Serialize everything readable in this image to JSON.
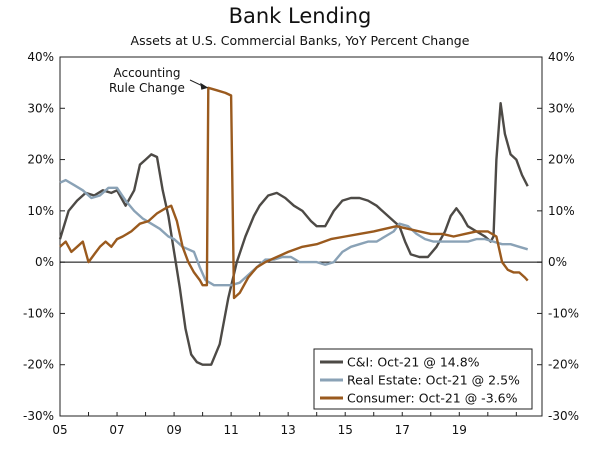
{
  "title": "Bank Lending",
  "subtitle": "Assets at U.S. Commercial Banks, YoY Percent Change",
  "chart_data": {
    "type": "line",
    "title": "Bank Lending",
    "subtitle": "Assets at U.S. Commercial Banks, YoY Percent Change",
    "xlim": [
      2005.0,
      2021.9
    ],
    "ylim": [
      -30,
      40
    ],
    "y_ticks": [
      -30,
      -20,
      -10,
      0,
      10,
      20,
      30,
      40
    ],
    "y_tick_labels": [
      "-30%",
      "-20%",
      "-10%",
      "0%",
      "10%",
      "20%",
      "30%",
      "40%"
    ],
    "x_ticks": [
      2005,
      2007,
      2009,
      2011,
      2013,
      2015,
      2017,
      2019
    ],
    "x_tick_labels": [
      "05",
      "07",
      "09",
      "11",
      "13",
      "15",
      "17",
      "19"
    ],
    "grid": false,
    "legend_position": "bottom-right",
    "annotation": {
      "lines": [
        "Accounting",
        "Rule Change"
      ],
      "x": 2010.2,
      "y": 34
    },
    "series": [
      {
        "name": "C&I: Oct-21 @ 14.8%",
        "color": "#4d4a46",
        "points": [
          [
            2005.0,
            4.5
          ],
          [
            2005.3,
            10
          ],
          [
            2005.6,
            12
          ],
          [
            2005.9,
            13.5
          ],
          [
            2006.2,
            13
          ],
          [
            2006.5,
            14
          ],
          [
            2006.8,
            13.5
          ],
          [
            2007.0,
            14
          ],
          [
            2007.3,
            11
          ],
          [
            2007.6,
            14
          ],
          [
            2007.8,
            19
          ],
          [
            2008.0,
            20
          ],
          [
            2008.2,
            21
          ],
          [
            2008.4,
            20.5
          ],
          [
            2008.6,
            14
          ],
          [
            2008.8,
            9
          ],
          [
            2009.0,
            2
          ],
          [
            2009.2,
            -5
          ],
          [
            2009.4,
            -13
          ],
          [
            2009.6,
            -18
          ],
          [
            2009.8,
            -19.5
          ],
          [
            2010.0,
            -20
          ],
          [
            2010.3,
            -20
          ],
          [
            2010.6,
            -16
          ],
          [
            2010.9,
            -7
          ],
          [
            2011.2,
            0
          ],
          [
            2011.5,
            5
          ],
          [
            2011.8,
            9
          ],
          [
            2012.0,
            11
          ],
          [
            2012.3,
            13
          ],
          [
            2012.6,
            13.5
          ],
          [
            2012.9,
            12.5
          ],
          [
            2013.2,
            11
          ],
          [
            2013.5,
            10
          ],
          [
            2013.8,
            8
          ],
          [
            2014.0,
            7
          ],
          [
            2014.3,
            7
          ],
          [
            2014.6,
            10
          ],
          [
            2014.9,
            12
          ],
          [
            2015.2,
            12.5
          ],
          [
            2015.5,
            12.5
          ],
          [
            2015.8,
            12
          ],
          [
            2016.1,
            11
          ],
          [
            2016.4,
            9.5
          ],
          [
            2016.7,
            8
          ],
          [
            2016.9,
            7
          ],
          [
            2017.1,
            4
          ],
          [
            2017.3,
            1.5
          ],
          [
            2017.6,
            1
          ],
          [
            2017.9,
            1
          ],
          [
            2018.2,
            3
          ],
          [
            2018.5,
            6
          ],
          [
            2018.7,
            9
          ],
          [
            2018.9,
            10.5
          ],
          [
            2019.1,
            9
          ],
          [
            2019.3,
            7
          ],
          [
            2019.6,
            6
          ],
          [
            2019.9,
            5
          ],
          [
            2020.1,
            4
          ],
          [
            2020.2,
            5
          ],
          [
            2020.3,
            20
          ],
          [
            2020.45,
            31
          ],
          [
            2020.6,
            25
          ],
          [
            2020.8,
            21
          ],
          [
            2021.0,
            20
          ],
          [
            2021.2,
            17
          ],
          [
            2021.4,
            14.8
          ]
        ]
      },
      {
        "name": "Real Estate: Oct-21 @ 2.5%",
        "color": "#8aa2b6",
        "points": [
          [
            2005.0,
            15.5
          ],
          [
            2005.2,
            16
          ],
          [
            2005.5,
            15
          ],
          [
            2005.8,
            14
          ],
          [
            2006.1,
            12.5
          ],
          [
            2006.4,
            13
          ],
          [
            2006.7,
            14.5
          ],
          [
            2007.0,
            14.5
          ],
          [
            2007.3,
            12
          ],
          [
            2007.6,
            10
          ],
          [
            2007.9,
            8.5
          ],
          [
            2008.2,
            7.5
          ],
          [
            2008.5,
            6.5
          ],
          [
            2008.8,
            5
          ],
          [
            2009.0,
            4.5
          ],
          [
            2009.3,
            3
          ],
          [
            2009.5,
            2.5
          ],
          [
            2009.7,
            2
          ],
          [
            2009.9,
            -1
          ],
          [
            2010.1,
            -3.5
          ],
          [
            2010.4,
            -4.5
          ],
          [
            2010.7,
            -4.5
          ],
          [
            2011.0,
            -4.5
          ],
          [
            2011.3,
            -4
          ],
          [
            2011.6,
            -2.5
          ],
          [
            2011.9,
            -1
          ],
          [
            2012.2,
            0.5
          ],
          [
            2012.5,
            0.5
          ],
          [
            2012.8,
            1
          ],
          [
            2013.1,
            1
          ],
          [
            2013.4,
            0
          ],
          [
            2013.7,
            0
          ],
          [
            2014.0,
            0
          ],
          [
            2014.3,
            -0.5
          ],
          [
            2014.6,
            0
          ],
          [
            2014.9,
            2
          ],
          [
            2015.2,
            3
          ],
          [
            2015.5,
            3.5
          ],
          [
            2015.8,
            4
          ],
          [
            2016.1,
            4
          ],
          [
            2016.4,
            5
          ],
          [
            2016.7,
            6
          ],
          [
            2016.9,
            7.5
          ],
          [
            2017.2,
            7
          ],
          [
            2017.5,
            5.5
          ],
          [
            2017.8,
            4.5
          ],
          [
            2018.1,
            4
          ],
          [
            2018.4,
            4
          ],
          [
            2018.7,
            4
          ],
          [
            2019.0,
            4
          ],
          [
            2019.3,
            4
          ],
          [
            2019.6,
            4.5
          ],
          [
            2019.9,
            4.5
          ],
          [
            2020.2,
            4
          ],
          [
            2020.5,
            3.5
          ],
          [
            2020.8,
            3.5
          ],
          [
            2021.1,
            3
          ],
          [
            2021.4,
            2.5
          ]
        ]
      },
      {
        "name": "Consumer: Oct-21 @ -3.6%",
        "color": "#9a5a1e",
        "points": [
          [
            2005.0,
            3
          ],
          [
            2005.2,
            4
          ],
          [
            2005.4,
            2
          ],
          [
            2005.6,
            3
          ],
          [
            2005.8,
            4
          ],
          [
            2006.0,
            0
          ],
          [
            2006.2,
            1.5
          ],
          [
            2006.4,
            3
          ],
          [
            2006.6,
            4
          ],
          [
            2006.8,
            3
          ],
          [
            2007.0,
            4.5
          ],
          [
            2007.2,
            5
          ],
          [
            2007.5,
            6
          ],
          [
            2007.8,
            7.5
          ],
          [
            2008.1,
            8
          ],
          [
            2008.4,
            9.5
          ],
          [
            2008.7,
            10.5
          ],
          [
            2008.9,
            11
          ],
          [
            2009.1,
            8
          ],
          [
            2009.3,
            3
          ],
          [
            2009.5,
            0
          ],
          [
            2009.7,
            -2
          ],
          [
            2009.9,
            -3.5
          ],
          [
            2010.0,
            -4.5
          ],
          [
            2010.15,
            -4.5
          ],
          [
            2010.2,
            34
          ],
          [
            2010.5,
            33.5
          ],
          [
            2010.8,
            33
          ],
          [
            2011.0,
            32.5
          ],
          [
            2011.1,
            -7
          ],
          [
            2011.3,
            -6
          ],
          [
            2011.6,
            -3
          ],
          [
            2011.9,
            -1
          ],
          [
            2012.2,
            0
          ],
          [
            2012.6,
            1
          ],
          [
            2013.0,
            2
          ],
          [
            2013.5,
            3
          ],
          [
            2014.0,
            3.5
          ],
          [
            2014.5,
            4.5
          ],
          [
            2015.0,
            5
          ],
          [
            2015.5,
            5.5
          ],
          [
            2016.0,
            6
          ],
          [
            2016.4,
            6.5
          ],
          [
            2016.8,
            7
          ],
          [
            2017.2,
            6.5
          ],
          [
            2017.6,
            6
          ],
          [
            2018.0,
            5.5
          ],
          [
            2018.4,
            5.5
          ],
          [
            2018.8,
            5
          ],
          [
            2019.2,
            5.5
          ],
          [
            2019.6,
            6
          ],
          [
            2020.0,
            6
          ],
          [
            2020.3,
            5
          ],
          [
            2020.5,
            0
          ],
          [
            2020.7,
            -1.5
          ],
          [
            2020.9,
            -2
          ],
          [
            2021.1,
            -2
          ],
          [
            2021.3,
            -3
          ],
          [
            2021.4,
            -3.6
          ]
        ]
      }
    ]
  }
}
